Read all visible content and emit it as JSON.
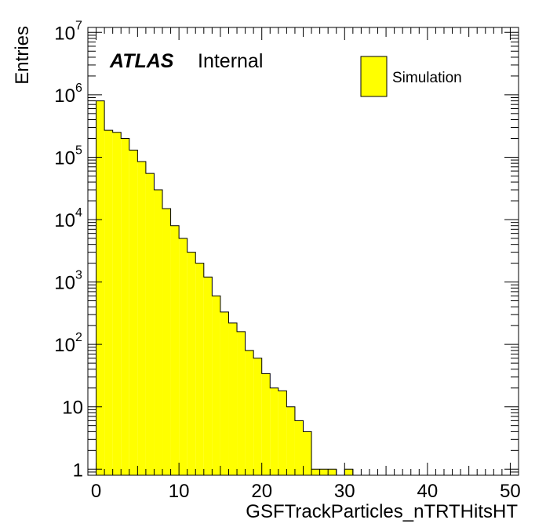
{
  "chart_data": {
    "type": "bar",
    "style": "histogram-step",
    "xlabel": "GSFTrackParticles_nTRTHitsHT",
    "ylabel": "Entries",
    "xlim": [
      -1,
      51
    ],
    "ylim": [
      0.8,
      12000000
    ],
    "yscale": "log",
    "bin_width": 1,
    "bins_start": 0,
    "values": [
      800000,
      270000,
      250000,
      200000,
      130000,
      85000,
      55000,
      30000,
      15000,
      8000,
      5000,
      3000,
      2000,
      1200,
      600,
      330,
      220,
      160,
      80,
      60,
      34,
      20,
      18,
      10,
      6,
      4,
      1,
      1,
      1,
      0,
      1
    ],
    "fill_color": "#ffff00",
    "line_color": "#000000",
    "x_ticks": [
      "0",
      "10",
      "20",
      "30",
      "40",
      "50"
    ],
    "y_ticks": [
      {
        "value": 1,
        "base": "1",
        "exp": ""
      },
      {
        "value": 10,
        "base": "10",
        "exp": ""
      },
      {
        "value": 100,
        "base": "10",
        "exp": "2"
      },
      {
        "value": 1000,
        "base": "10",
        "exp": "3"
      },
      {
        "value": 10000,
        "base": "10",
        "exp": "4"
      },
      {
        "value": 100000,
        "base": "10",
        "exp": "5"
      },
      {
        "value": 1000000,
        "base": "10",
        "exp": "6"
      },
      {
        "value": 10000000,
        "base": "10",
        "exp": "7"
      }
    ],
    "legend": {
      "position": "top-right",
      "entries": [
        {
          "label": "Simulation",
          "color": "#ffff00"
        }
      ]
    },
    "annotation": {
      "bold": "ATLAS",
      "normal": "Internal"
    }
  }
}
